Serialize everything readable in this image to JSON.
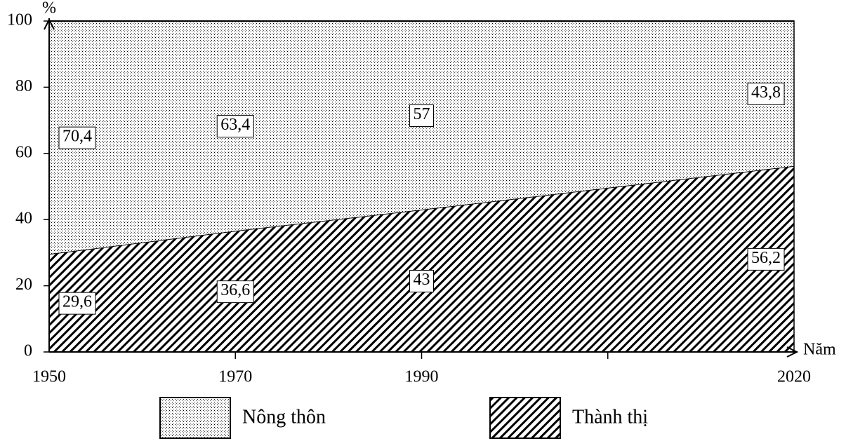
{
  "chart_data": {
    "type": "area",
    "y_label": "%",
    "x_label": "Năm",
    "categories": [
      "1950",
      "1970",
      "1990",
      "2020"
    ],
    "ylim": [
      0,
      100
    ],
    "yticks": [
      0,
      20,
      40,
      60,
      80,
      100
    ],
    "stacked": true,
    "series": [
      {
        "name": "Thành thị",
        "color": "#000000",
        "pattern": "hatch",
        "values": [
          29.6,
          36.6,
          43,
          56.2
        ],
        "value_labels": [
          "29,6",
          "36,6",
          "43",
          "56,2"
        ]
      },
      {
        "name": "Nông thôn",
        "color": "#000000",
        "pattern": "dots",
        "values": [
          70.4,
          63.4,
          57,
          43.8
        ],
        "value_labels": [
          "70,4",
          "63,4",
          "57",
          "43,8"
        ]
      }
    ],
    "legend_order": [
      1,
      0
    ]
  }
}
